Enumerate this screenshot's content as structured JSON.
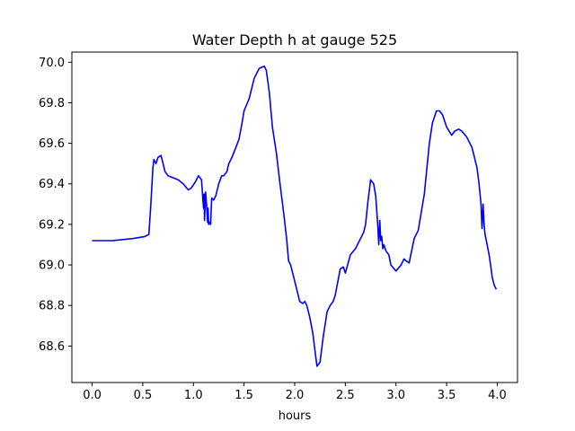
{
  "chart_data": {
    "type": "line",
    "title": "Water Depth h at gauge 525",
    "xlabel": "hours",
    "ylabel": "",
    "xlim": [
      -0.2,
      4.2
    ],
    "ylim": [
      68.42,
      70.05
    ],
    "xticks": [
      0.0,
      0.5,
      1.0,
      1.5,
      2.0,
      2.5,
      3.0,
      3.5,
      4.0
    ],
    "xtick_labels": [
      "0.0",
      "0.5",
      "1.0",
      "1.5",
      "2.0",
      "2.5",
      "3.0",
      "3.5",
      "4.0"
    ],
    "yticks": [
      68.6,
      68.8,
      69.0,
      69.2,
      69.4,
      69.6,
      69.8,
      70.0
    ],
    "ytick_labels": [
      "68.6",
      "68.8",
      "69.0",
      "69.2",
      "69.4",
      "69.6",
      "69.8",
      "70.0"
    ],
    "grid": false,
    "legend": false,
    "color": "#0000ff",
    "series": [
      {
        "x": [
          0.0,
          0.2,
          0.4,
          0.52,
          0.56,
          0.58,
          0.6,
          0.61,
          0.63,
          0.65,
          0.68,
          0.7,
          0.72,
          0.75,
          0.8,
          0.85,
          0.9,
          0.95,
          0.98,
          1.02,
          1.05,
          1.08,
          1.1,
          1.105,
          1.11,
          1.12,
          1.13,
          1.14,
          1.145,
          1.15,
          1.16,
          1.17,
          1.18,
          1.2,
          1.22,
          1.25,
          1.28,
          1.3,
          1.33,
          1.35,
          1.38,
          1.42,
          1.45,
          1.48,
          1.5,
          1.55,
          1.6,
          1.65,
          1.7,
          1.72,
          1.75,
          1.78,
          1.82,
          1.85,
          1.88,
          1.9,
          1.92,
          1.94,
          1.96,
          2.0,
          2.05,
          2.08,
          2.1,
          2.12,
          2.15,
          2.18,
          2.2,
          2.22,
          2.25,
          2.28,
          2.32,
          2.35,
          2.38,
          2.4,
          2.45,
          2.48,
          2.5,
          2.55,
          2.6,
          2.65,
          2.68,
          2.7,
          2.72,
          2.75,
          2.78,
          2.8,
          2.82,
          2.83,
          2.84,
          2.85,
          2.86,
          2.87,
          2.88,
          2.9,
          2.93,
          2.95,
          3.0,
          3.05,
          3.08,
          3.1,
          3.13,
          3.18,
          3.22,
          3.28,
          3.33,
          3.36,
          3.4,
          3.43,
          3.46,
          3.5,
          3.55,
          3.58,
          3.62,
          3.65,
          3.7,
          3.75,
          3.8,
          3.82,
          3.84,
          3.85,
          3.86,
          3.87,
          3.88,
          3.9,
          3.92,
          3.94,
          3.95,
          3.97,
          3.99
        ],
        "y": [
          69.12,
          69.12,
          69.13,
          69.14,
          69.15,
          69.3,
          69.48,
          69.52,
          69.5,
          69.53,
          69.54,
          69.5,
          69.46,
          69.44,
          69.43,
          69.42,
          69.4,
          69.37,
          69.38,
          69.41,
          69.44,
          69.42,
          69.28,
          69.35,
          69.22,
          69.36,
          69.3,
          69.21,
          69.28,
          69.2,
          69.21,
          69.2,
          69.33,
          69.32,
          69.34,
          69.4,
          69.44,
          69.44,
          69.46,
          69.5,
          69.53,
          69.58,
          69.62,
          69.7,
          69.76,
          69.82,
          69.92,
          69.97,
          69.98,
          69.96,
          69.85,
          69.68,
          69.55,
          69.42,
          69.3,
          69.22,
          69.13,
          69.02,
          69.0,
          68.92,
          68.82,
          68.81,
          68.82,
          68.8,
          68.74,
          68.66,
          68.58,
          68.5,
          68.52,
          68.64,
          68.77,
          68.8,
          68.82,
          68.85,
          68.98,
          68.99,
          68.96,
          69.05,
          69.08,
          69.13,
          69.16,
          69.2,
          69.3,
          69.42,
          69.4,
          69.34,
          69.2,
          69.1,
          69.22,
          69.12,
          69.14,
          69.08,
          69.1,
          69.07,
          69.05,
          69.0,
          68.97,
          69.0,
          69.03,
          69.02,
          69.01,
          69.13,
          69.17,
          69.35,
          69.6,
          69.7,
          69.76,
          69.76,
          69.74,
          69.68,
          69.64,
          69.66,
          69.67,
          69.66,
          69.63,
          69.58,
          69.48,
          69.4,
          69.3,
          69.18,
          69.3,
          69.2,
          69.15,
          69.1,
          69.05,
          68.98,
          68.94,
          68.9,
          68.88
        ]
      }
    ]
  }
}
